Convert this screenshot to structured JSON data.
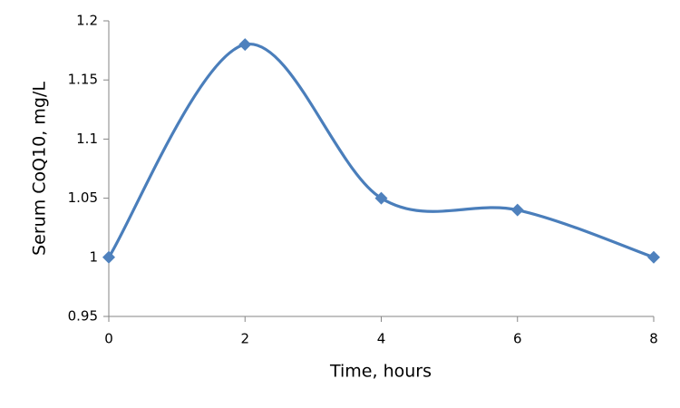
{
  "chart_data": {
    "type": "line",
    "xlabel": "Time, hours",
    "ylabel": "Serum CoQ10, mg/L",
    "x": [
      0,
      2,
      4,
      6,
      8
    ],
    "series": [
      {
        "color": "#4a7ebb",
        "marker_color": "#4f81bd",
        "values": [
          1,
          1.18,
          1.05,
          1.04,
          1
        ]
      }
    ],
    "xlim": [
      0,
      8
    ],
    "xticks": [
      0,
      2,
      4,
      6,
      8
    ],
    "ylim": [
      0.95,
      1.2
    ],
    "yticks": [
      0.95,
      1,
      1.05,
      1.1,
      1.15,
      1.2
    ],
    "grid": false,
    "smooth": true,
    "marker": "diamond"
  }
}
